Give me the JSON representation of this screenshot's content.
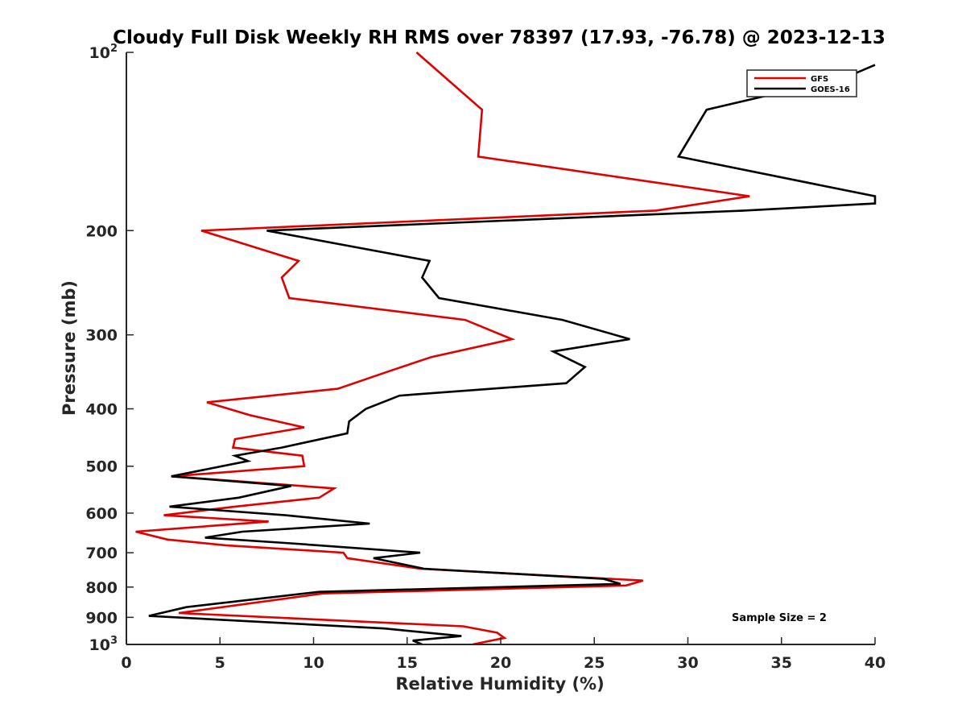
{
  "chart_data": {
    "type": "line",
    "title": "Cloudy Full Disk Weekly RH RMS over 78397 (17.93, -76.78) @ 2023-12-13",
    "xlabel": "Relative Humidity (%)",
    "ylabel": "Pressure (mb)",
    "xlim": [
      0,
      40
    ],
    "ylim": [
      100,
      1000
    ],
    "yscale": "log",
    "yreversed": true,
    "xticks": [
      0,
      5,
      10,
      15,
      20,
      25,
      30,
      35,
      40
    ],
    "xtick_labels": [
      "0",
      "5",
      "10",
      "15",
      "20",
      "25",
      "30",
      "35",
      "40"
    ],
    "yticks": [
      {
        "value": 100,
        "base": "10",
        "exp": "2"
      },
      {
        "value": 200,
        "label": "200"
      },
      {
        "value": 300,
        "label": "300"
      },
      {
        "value": 400,
        "label": "400"
      },
      {
        "value": 500,
        "label": "500"
      },
      {
        "value": 600,
        "label": "600"
      },
      {
        "value": 700,
        "label": "700"
      },
      {
        "value": 800,
        "label": "800"
      },
      {
        "value": 900,
        "label": "900"
      },
      {
        "value": 1000,
        "base": "10",
        "exp": "3"
      }
    ],
    "grid": false,
    "legend_position": "top-right",
    "annotation": "Sample Size = 2",
    "series": [
      {
        "name": "GFS",
        "color": "#e00000",
        "points": [
          [
            15.5,
            100
          ],
          [
            19.0,
            125
          ],
          [
            18.8,
            150
          ],
          [
            33.3,
            175
          ],
          [
            28.3,
            185
          ],
          [
            4.0,
            200
          ],
          [
            9.2,
            225
          ],
          [
            8.3,
            240
          ],
          [
            8.7,
            260
          ],
          [
            18.1,
            283
          ],
          [
            20.6,
            305
          ],
          [
            16.3,
            327
          ],
          [
            14.1,
            345
          ],
          [
            11.3,
            370
          ],
          [
            4.3,
            390
          ],
          [
            6.6,
            410
          ],
          [
            9.5,
            430
          ],
          [
            5.8,
            450
          ],
          [
            5.7,
            465
          ],
          [
            9.4,
            480
          ],
          [
            9.5,
            500
          ],
          [
            2.4,
            520
          ],
          [
            11.1,
            545
          ],
          [
            10.3,
            565
          ],
          [
            5.8,
            585
          ],
          [
            2.0,
            605
          ],
          [
            7.6,
            620
          ],
          [
            0.5,
            645
          ],
          [
            2.2,
            665
          ],
          [
            5.3,
            680
          ],
          [
            11.6,
            700
          ],
          [
            11.8,
            715
          ],
          [
            15.7,
            745
          ],
          [
            27.6,
            780
          ],
          [
            26.7,
            795
          ],
          [
            10.5,
            820
          ],
          [
            2.8,
            885
          ],
          [
            18.0,
            932
          ],
          [
            19.8,
            955
          ],
          [
            20.2,
            975
          ],
          [
            18.5,
            1000
          ]
        ]
      },
      {
        "name": "GOES-16",
        "color": "#000000",
        "points": [
          [
            40.0,
            105
          ],
          [
            38.5,
            110
          ],
          [
            31.0,
            125
          ],
          [
            29.5,
            150
          ],
          [
            40.0,
            175
          ],
          [
            40.0,
            180
          ],
          [
            33.0,
            185
          ],
          [
            7.5,
            200
          ],
          [
            16.2,
            225
          ],
          [
            15.8,
            240
          ],
          [
            16.7,
            260
          ],
          [
            23.3,
            283
          ],
          [
            26.9,
            305
          ],
          [
            22.8,
            320
          ],
          [
            24.5,
            340
          ],
          [
            23.5,
            362
          ],
          [
            14.6,
            380
          ],
          [
            12.8,
            400
          ],
          [
            11.9,
            420
          ],
          [
            11.8,
            440
          ],
          [
            8.3,
            465
          ],
          [
            5.8,
            480
          ],
          [
            6.5,
            490
          ],
          [
            2.4,
            520
          ],
          [
            8.8,
            540
          ],
          [
            6.0,
            565
          ],
          [
            2.3,
            585
          ],
          [
            8.5,
            605
          ],
          [
            13.0,
            625
          ],
          [
            6.2,
            645
          ],
          [
            4.2,
            660
          ],
          [
            8.8,
            675
          ],
          [
            15.7,
            700
          ],
          [
            13.2,
            715
          ],
          [
            15.9,
            745
          ],
          [
            25.5,
            775
          ],
          [
            26.4,
            790
          ],
          [
            10.3,
            815
          ],
          [
            3.2,
            865
          ],
          [
            1.2,
            895
          ],
          [
            13.8,
            940
          ],
          [
            17.9,
            968
          ],
          [
            15.3,
            985
          ],
          [
            15.8,
            1000
          ]
        ]
      }
    ]
  }
}
